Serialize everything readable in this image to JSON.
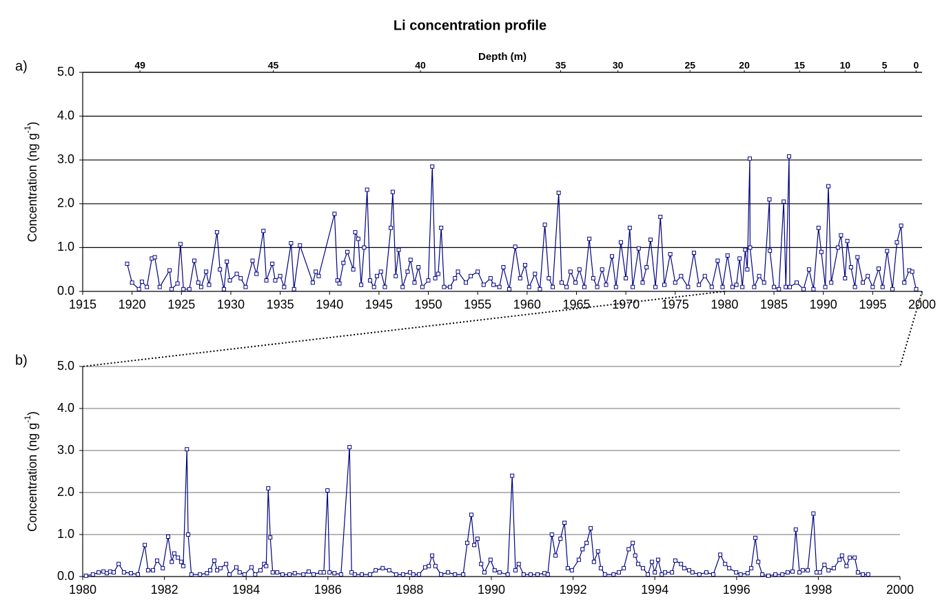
{
  "chart_data": [
    {
      "type": "line",
      "panel_label": "a)",
      "title": "Li concentration profile",
      "x2_label": "Depth (m)",
      "ylabel_parts": [
        "Concentration (ng g",
        "-1",
        ")"
      ],
      "color": "#000080",
      "marker": "square",
      "grid": true,
      "grid_color": "#000000",
      "xlim": [
        1915,
        2000
      ],
      "xticks": [
        1915,
        1920,
        1925,
        1930,
        1935,
        1940,
        1945,
        1950,
        1955,
        1960,
        1965,
        1970,
        1975,
        1980,
        1985,
        1990,
        1995,
        2000
      ],
      "x2ticks": [
        {
          "value": 1920.8,
          "label": "49"
        },
        {
          "value": 1934.3,
          "label": "45"
        },
        {
          "value": 1949.2,
          "label": "40"
        },
        {
          "value": 1963.4,
          "label": "35"
        },
        {
          "value": 1969.2,
          "label": "30"
        },
        {
          "value": 1976.5,
          "label": "25"
        },
        {
          "value": 1982.0,
          "label": "20"
        },
        {
          "value": 1987.6,
          "label": "15"
        },
        {
          "value": 1992.2,
          "label": "10"
        },
        {
          "value": 1996.2,
          "label": "5"
        },
        {
          "value": 1999.4,
          "label": "0"
        }
      ],
      "ylim": [
        0,
        5
      ],
      "yticks": [
        {
          "value": 0,
          "label": "0.0"
        },
        {
          "value": 1,
          "label": "1.0"
        },
        {
          "value": 2,
          "label": "2.0"
        },
        {
          "value": 3,
          "label": "3.0"
        },
        {
          "value": 4,
          "label": "4.0"
        },
        {
          "value": 5,
          "label": "5.0"
        }
      ],
      "x": [
        1919.5,
        1920,
        1920.7,
        1921,
        1921.5,
        1922,
        1922.3,
        1922.8,
        1923.8,
        1924,
        1924.6,
        1924.9,
        1925.2,
        1925.8,
        1926.3,
        1926.7,
        1927,
        1927.5,
        1927.8,
        1928.6,
        1928.9,
        1929.3,
        1929.6,
        1929.9,
        1930.6,
        1931,
        1931.5,
        1932.2,
        1932.6,
        1933.3,
        1933.6,
        1934.2,
        1934.5,
        1935.0,
        1935.4,
        1936.1,
        1936.4,
        1937.0,
        1938.3,
        1938.6,
        1938.9,
        1940.5,
        1940.8,
        1941.0,
        1941.4,
        1941.8,
        1942.4,
        1942.6,
        1942.9,
        1943.2,
        1943.5,
        1943.8,
        1944.1,
        1944.5,
        1944.8,
        1945.2,
        1945.6,
        1946.2,
        1946.4,
        1946.7,
        1947.0,
        1947.4,
        1947.9,
        1948.2,
        1948.6,
        1949.0,
        1949.4,
        1950.0,
        1950.4,
        1950.7,
        1951.0,
        1951.3,
        1951.6,
        1952.2,
        1952.7,
        1953.0,
        1953.8,
        1954.3,
        1955.0,
        1955.6,
        1956.3,
        1956.6,
        1957.2,
        1957.6,
        1958.2,
        1958.8,
        1959.3,
        1959.8,
        1960.2,
        1960.8,
        1961.3,
        1961.8,
        1962.2,
        1962.6,
        1963.2,
        1963.5,
        1964.0,
        1964.4,
        1964.9,
        1965.3,
        1965.8,
        1966.3,
        1966.7,
        1967.1,
        1967.6,
        1968.0,
        1968.6,
        1969.0,
        1969.5,
        1970.0,
        1970.4,
        1970.7,
        1971.3,
        1971.7,
        1972.1,
        1972.5,
        1973.0,
        1973.5,
        1973.9,
        1974.5,
        1975.0,
        1975.6,
        1976.3,
        1976.9,
        1977.4,
        1978.0,
        1978.7,
        1979.3,
        1979.8,
        1980.3,
        1980.8,
        1981.2,
        1981.52,
        1981.8,
        1982.09,
        1982.3,
        1982.55,
        1982.58,
        1983.0,
        1983.5,
        1984.0,
        1984.54,
        1984.59,
        1985.0,
        1985.5,
        1985.99,
        1986.2,
        1986.53,
        1986.6,
        1987.3,
        1988.0,
        1988.55,
        1989.0,
        1989.51,
        1989.8,
        1990.2,
        1990.51,
        1990.8,
        1991.48,
        1991.79,
        1992.2,
        1992.43,
        1992.8,
        1993.2,
        1993.46,
        1994.0,
        1994.5,
        1995.0,
        1995.6,
        1996.0,
        1996.46,
        1997.0,
        1997.45,
        1997.88,
        1998.2,
        1998.7,
        1999.0,
        1999.4
      ],
      "values": [
        0.63,
        0.2,
        0.05,
        0.22,
        0.1,
        0.75,
        0.78,
        0.1,
        0.48,
        0.05,
        0.18,
        1.08,
        0.05,
        0.05,
        0.7,
        0.2,
        0.1,
        0.45,
        0.15,
        1.35,
        0.5,
        0.05,
        0.68,
        0.25,
        0.4,
        0.3,
        0.1,
        0.7,
        0.4,
        1.38,
        0.25,
        0.63,
        0.25,
        0.35,
        0.1,
        1.1,
        0.05,
        1.05,
        0.2,
        0.45,
        0.35,
        1.77,
        0.25,
        0.18,
        0.65,
        0.9,
        0.5,
        1.35,
        1.2,
        0.15,
        1.0,
        2.32,
        0.25,
        0.1,
        0.35,
        0.45,
        0.1,
        1.45,
        2.27,
        0.35,
        0.95,
        0.1,
        0.45,
        0.72,
        0.2,
        0.55,
        0.1,
        0.25,
        2.85,
        0.3,
        0.4,
        1.45,
        0.1,
        0.1,
        0.3,
        0.45,
        0.2,
        0.35,
        0.45,
        0.15,
        0.3,
        0.15,
        0.1,
        0.55,
        0.05,
        1.02,
        0.3,
        0.6,
        0.1,
        0.4,
        0.05,
        1.52,
        0.3,
        0.1,
        2.25,
        0.2,
        0.1,
        0.45,
        0.2,
        0.5,
        0.1,
        1.2,
        0.3,
        0.1,
        0.5,
        0.15,
        0.8,
        0.1,
        1.12,
        0.3,
        1.45,
        0.1,
        0.98,
        0.2,
        0.55,
        1.18,
        0.1,
        1.7,
        0.15,
        0.85,
        0.2,
        0.35,
        0.1,
        0.88,
        0.15,
        0.35,
        0.1,
        0.7,
        0.1,
        0.82,
        0.1,
        0.15,
        0.75,
        0.1,
        0.95,
        0.5,
        3.03,
        1.0,
        0.1,
        0.35,
        0.2,
        2.1,
        0.93,
        0.1,
        0.05,
        2.05,
        0.1,
        3.08,
        0.1,
        0.2,
        0.05,
        0.5,
        0.05,
        1.45,
        0.9,
        0.1,
        2.4,
        0.2,
        1.0,
        1.28,
        0.3,
        1.15,
        0.55,
        0.1,
        0.78,
        0.2,
        0.35,
        0.1,
        0.52,
        0.1,
        0.92,
        0.05,
        1.12,
        1.5,
        0.2,
        0.48,
        0.45,
        0.05
      ]
    },
    {
      "type": "line",
      "panel_label": "b)",
      "ylabel_parts": [
        "Concentration (ng g",
        "-1",
        ")"
      ],
      "color": "#000080",
      "marker": "square",
      "grid": true,
      "grid_color": "#8c8c8c",
      "xlim": [
        1980,
        2000
      ],
      "xticks": [
        1980,
        1982,
        1984,
        1986,
        1988,
        1990,
        1992,
        1994,
        1996,
        1998,
        2000
      ],
      "ylim": [
        0,
        5
      ],
      "yticks": [
        {
          "value": 0,
          "label": "0.0"
        },
        {
          "value": 1,
          "label": "1.0"
        },
        {
          "value": 2,
          "label": "2.0"
        },
        {
          "value": 3,
          "label": "3.0"
        },
        {
          "value": 4,
          "label": "4.0"
        },
        {
          "value": 5,
          "label": "5.0"
        }
      ],
      "x": [
        1980.08,
        1980.25,
        1980.39,
        1980.51,
        1980.59,
        1980.67,
        1980.76,
        1980.88,
        1981.01,
        1981.18,
        1981.35,
        1981.52,
        1981.6,
        1981.72,
        1981.82,
        1981.96,
        1982.09,
        1982.18,
        1982.24,
        1982.33,
        1982.41,
        1982.46,
        1982.55,
        1982.58,
        1982.66,
        1982.87,
        1983.04,
        1983.12,
        1983.22,
        1983.29,
        1983.37,
        1983.51,
        1983.59,
        1983.76,
        1983.84,
        1983.96,
        1984.13,
        1984.22,
        1984.35,
        1984.44,
        1984.49,
        1984.54,
        1984.59,
        1984.65,
        1984.76,
        1984.89,
        1985.06,
        1985.19,
        1985.4,
        1985.53,
        1985.65,
        1985.82,
        1985.9,
        1985.99,
        1986.04,
        1986.16,
        1986.32,
        1986.53,
        1986.58,
        1986.66,
        1986.83,
        1987.03,
        1987.17,
        1987.34,
        1987.5,
        1987.67,
        1987.84,
        1988.01,
        1988.09,
        1988.23,
        1988.38,
        1988.47,
        1988.55,
        1988.63,
        1988.77,
        1988.94,
        1989.11,
        1989.31,
        1989.41,
        1989.51,
        1989.58,
        1989.66,
        1989.75,
        1989.83,
        1989.98,
        1990.08,
        1990.2,
        1990.4,
        1990.51,
        1990.59,
        1990.67,
        1990.79,
        1990.96,
        1991.13,
        1991.3,
        1991.38,
        1991.48,
        1991.57,
        1991.69,
        1991.79,
        1991.87,
        1991.97,
        1992.14,
        1992.23,
        1992.33,
        1992.43,
        1992.51,
        1992.61,
        1992.68,
        1992.78,
        1992.99,
        1993.12,
        1993.24,
        1993.36,
        1993.46,
        1993.52,
        1993.59,
        1993.71,
        1993.83,
        1993.93,
        1994.0,
        1994.08,
        1994.17,
        1994.25,
        1994.42,
        1994.5,
        1994.64,
        1994.72,
        1994.84,
        1994.92,
        1995.09,
        1995.26,
        1995.43,
        1995.6,
        1995.72,
        1995.82,
        1995.99,
        1996.1,
        1996.27,
        1996.36,
        1996.46,
        1996.53,
        1996.63,
        1996.78,
        1996.95,
        1997.12,
        1997.25,
        1997.37,
        1997.45,
        1997.54,
        1997.62,
        1997.74,
        1997.88,
        1997.96,
        1998.04,
        1998.15,
        1998.25,
        1998.38,
        1998.52,
        1998.58,
        1998.69,
        1998.77,
        1998.89,
        1998.97,
        1999.09,
        1999.22
      ],
      "values": [
        0.02,
        0.05,
        0.1,
        0.12,
        0.08,
        0.12,
        0.1,
        0.3,
        0.1,
        0.08,
        0.05,
        0.75,
        0.15,
        0.15,
        0.38,
        0.2,
        0.95,
        0.35,
        0.55,
        0.45,
        0.35,
        0.25,
        3.03,
        1.0,
        0.05,
        0.05,
        0.08,
        0.15,
        0.38,
        0.15,
        0.2,
        0.3,
        0.05,
        0.22,
        0.1,
        0.05,
        0.22,
        0.05,
        0.15,
        0.3,
        0.25,
        2.1,
        0.93,
        0.1,
        0.1,
        0.05,
        0.05,
        0.08,
        0.05,
        0.12,
        0.05,
        0.1,
        0.1,
        2.05,
        0.1,
        0.08,
        0.05,
        3.08,
        0.1,
        0.05,
        0.05,
        0.05,
        0.15,
        0.2,
        0.15,
        0.05,
        0.05,
        0.1,
        0.05,
        0.05,
        0.22,
        0.25,
        0.5,
        0.25,
        0.05,
        0.1,
        0.05,
        0.05,
        0.8,
        1.47,
        0.75,
        0.9,
        0.3,
        0.1,
        0.4,
        0.15,
        0.1,
        0.05,
        2.4,
        0.15,
        0.3,
        0.05,
        0.05,
        0.05,
        0.08,
        0.05,
        1.0,
        0.5,
        0.9,
        1.28,
        0.2,
        0.15,
        0.4,
        0.65,
        0.8,
        1.15,
        0.35,
        0.6,
        0.2,
        0.05,
        0.05,
        0.1,
        0.2,
        0.65,
        0.8,
        0.5,
        0.3,
        0.2,
        0.05,
        0.35,
        0.1,
        0.4,
        0.05,
        0.1,
        0.1,
        0.38,
        0.3,
        0.2,
        0.15,
        0.1,
        0.05,
        0.1,
        0.05,
        0.52,
        0.3,
        0.2,
        0.1,
        0.05,
        0.08,
        0.2,
        0.92,
        0.35,
        0.05,
        0.02,
        0.05,
        0.05,
        0.1,
        0.12,
        1.12,
        0.1,
        0.15,
        0.15,
        1.5,
        0.1,
        0.1,
        0.28,
        0.15,
        0.2,
        0.4,
        0.5,
        0.25,
        0.45,
        0.45,
        0.1,
        0.05,
        0.05
      ]
    }
  ]
}
